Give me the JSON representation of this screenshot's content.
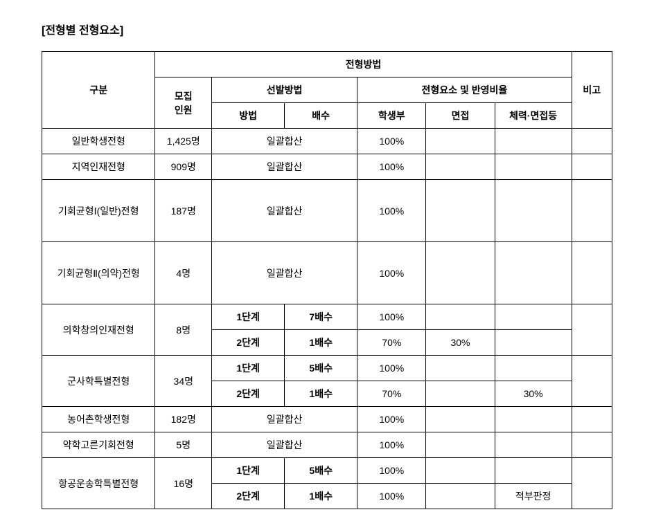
{
  "title": "[전형별 전형요소]",
  "headers": {
    "category": "구분",
    "method_group": "전형방법",
    "note": "비고",
    "recruit_count": "모집\n인원",
    "selection_method": "선발방법",
    "element_ratio": "전형요소 및 반영비율",
    "method": "방법",
    "multiple": "배수",
    "record": "학생부",
    "interview": "면접",
    "physical": "체력·면접등"
  },
  "rows": [
    {
      "name": "일반학생전형",
      "count": "1,425명",
      "method_span": "일괄합산",
      "record": "100%",
      "interview": "",
      "physical": "",
      "note": ""
    },
    {
      "name": "지역인재전형",
      "count": "909명",
      "method_span": "일괄합산",
      "record": "100%",
      "interview": "",
      "physical": "",
      "note": ""
    },
    {
      "name": "기회균형Ⅰ(일반)전형",
      "count": "187명",
      "method_span": "일괄합산",
      "record": "100%",
      "interview": "",
      "physical": "",
      "note": "",
      "tall": true
    },
    {
      "name": "기회균형Ⅱ(의약)전형",
      "count": "4명",
      "method_span": "일괄합산",
      "record": "100%",
      "interview": "",
      "physical": "",
      "note": "",
      "tall": true
    },
    {
      "name": "의학창의인재전형",
      "count": "8명",
      "stages": [
        {
          "method": "1단계",
          "multiple": "7배수",
          "record": "100%",
          "interview": "",
          "physical": ""
        },
        {
          "method": "2단계",
          "multiple": "1배수",
          "record": "70%",
          "interview": "30%",
          "physical": ""
        }
      ],
      "note": ""
    },
    {
      "name": "군사학특별전형",
      "count": "34명",
      "stages": [
        {
          "method": "1단계",
          "multiple": "5배수",
          "record": "100%",
          "interview": "",
          "physical": ""
        },
        {
          "method": "2단계",
          "multiple": "1배수",
          "record": "70%",
          "interview": "",
          "physical": "30%"
        }
      ],
      "note": ""
    },
    {
      "name": "농어촌학생전형",
      "count": "182명",
      "method_span": "일괄합산",
      "record": "100%",
      "interview": "",
      "physical": "",
      "note": ""
    },
    {
      "name": "약학고른기회전형",
      "count": "5명",
      "method_span": "일괄합산",
      "record": "100%",
      "interview": "",
      "physical": "",
      "note": ""
    },
    {
      "name": "항공운송학특별전형",
      "count": "16명",
      "stages": [
        {
          "method": "1단계",
          "multiple": "5배수",
          "record": "100%",
          "interview": "",
          "physical": ""
        },
        {
          "method": "2단계",
          "multiple": "1배수",
          "record": "100%",
          "interview": "",
          "physical": "적부판정"
        }
      ],
      "note": ""
    }
  ]
}
